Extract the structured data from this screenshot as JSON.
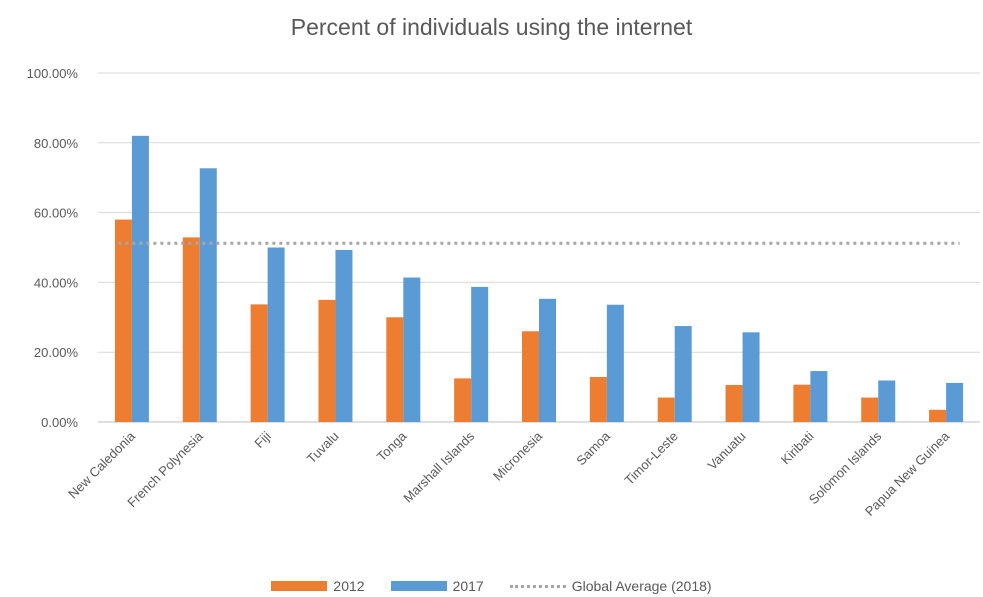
{
  "chart_data": {
    "type": "bar",
    "title": "Percent of individuals using the internet",
    "categories": [
      "New Caledonia",
      "French Polynesia",
      "Fiji",
      "Tuvalu",
      "Tonga",
      "Marshall Islands",
      "Micronesia",
      "Samoa",
      "Timor-Leste",
      "Vanuatu",
      "Kiribati",
      "Solomon Islands",
      "Papua New Guinea"
    ],
    "series": [
      {
        "name": "2012",
        "color": "#ed7d31",
        "values": [
          58.0,
          52.9,
          33.7,
          35.0,
          30.0,
          12.5,
          26.0,
          12.9,
          7.0,
          10.6,
          10.7,
          7.0,
          3.5
        ]
      },
      {
        "name": "2017",
        "color": "#5b9bd5",
        "values": [
          82.0,
          72.7,
          50.0,
          49.3,
          41.4,
          38.7,
          35.3,
          33.6,
          27.5,
          25.7,
          14.6,
          11.9,
          11.2
        ]
      }
    ],
    "reference_line": {
      "name": "Global Average (2018)",
      "value": 51.2,
      "color": "#a6a6a6",
      "style": "dotted"
    },
    "ylim": [
      0,
      100
    ],
    "yticks": [
      0,
      20,
      40,
      60,
      80,
      100
    ],
    "ytick_labels": [
      "0.00%",
      "20.00%",
      "40.00%",
      "60.00%",
      "80.00%",
      "100.00%"
    ],
    "grid": true,
    "legend_position": "bottom",
    "xlabel": "",
    "ylabel": ""
  }
}
